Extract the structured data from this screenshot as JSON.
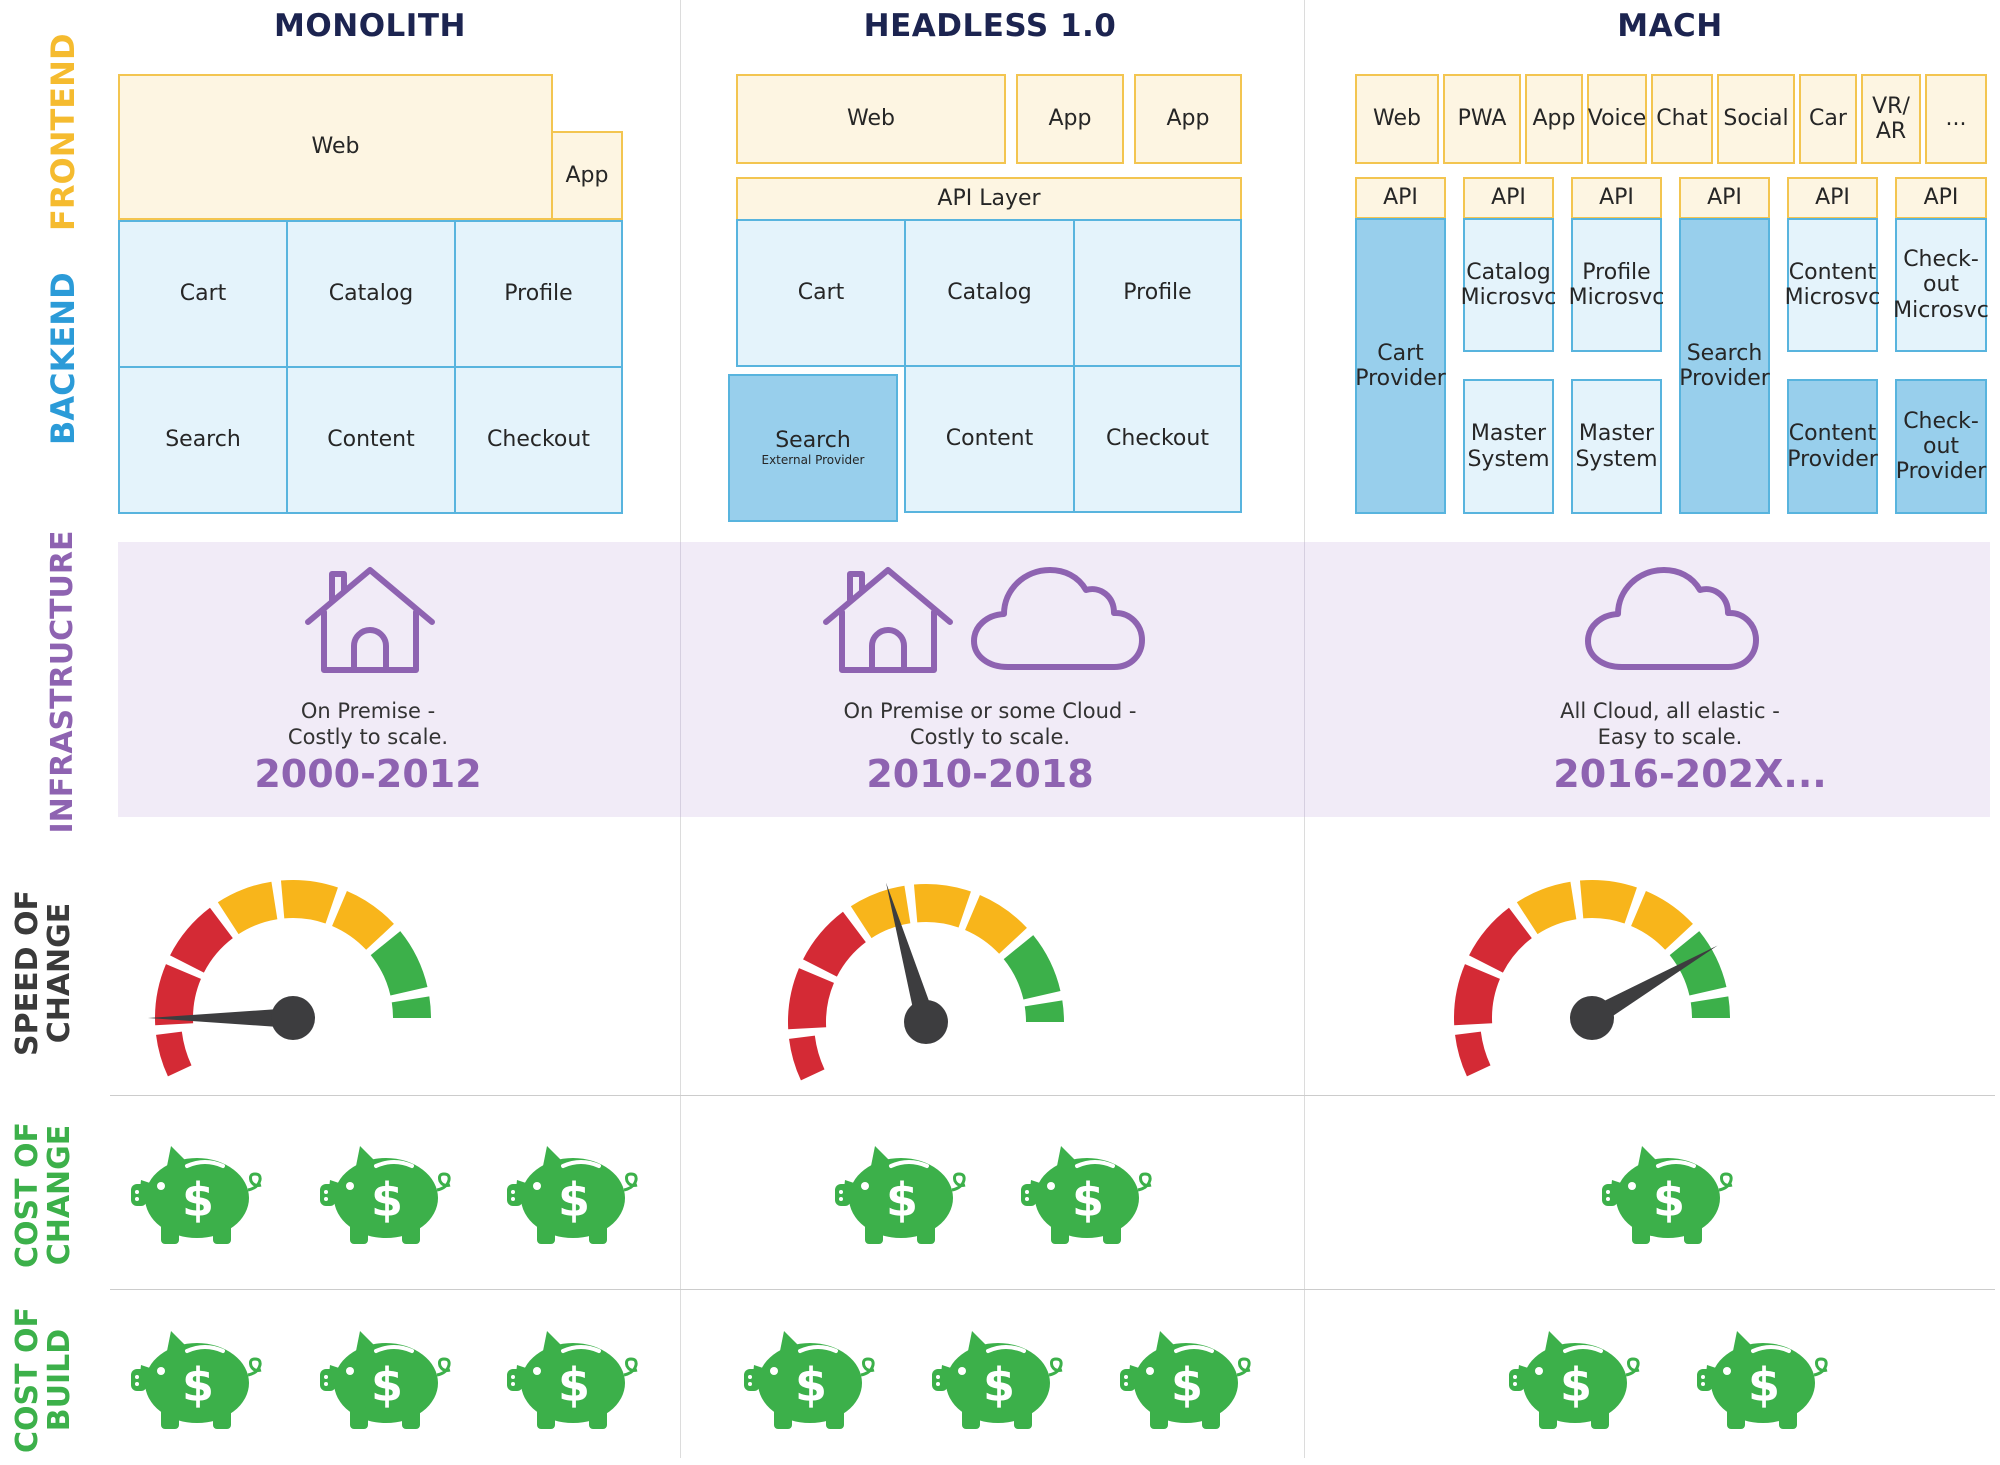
{
  "columns": [
    {
      "title": "MONOLITH"
    },
    {
      "title": "HEADLESS 1.0"
    },
    {
      "title": "MACH"
    }
  ],
  "row_labels": {
    "frontend": "FRONTEND",
    "backend": "BACKEND",
    "infrastructure": "INFRASTRUCTURE",
    "speed": "SPEED OF\nCHANGE",
    "cost_change": "COST OF\nCHANGE",
    "cost_build": "COST OF\nBUILD"
  },
  "colors": {
    "frontend": "#f5bb2f",
    "backend": "#2b9bd8",
    "infrastructure": "#8e63b1",
    "speed": "#3a3a3a",
    "cost": "#3cb04a",
    "title": "#1c2450"
  },
  "monolith": {
    "web": "Web",
    "app": "App",
    "services": [
      "Cart",
      "Catalog",
      "Profile",
      "Search",
      "Content",
      "Checkout"
    ]
  },
  "headless": {
    "web": "Web",
    "app1": "App",
    "app2": "App",
    "api_layer": "API Layer",
    "services": [
      "Cart",
      "Catalog",
      "Profile"
    ],
    "search": "Search",
    "search_sub": "External Provider",
    "services_bottom": [
      "Content",
      "Checkout"
    ]
  },
  "mach": {
    "channels": [
      "Web",
      "PWA",
      "App",
      "Voice",
      "Chat",
      "Social",
      "Car",
      "VR/\nAR",
      "..."
    ],
    "apis": [
      "API",
      "API",
      "API",
      "API",
      "API",
      "API"
    ],
    "cart": "Cart\nProvider",
    "catalog": "Catalog\nMicrosvc",
    "profile": "Profile\nMicrosvc",
    "search": "Search\nProvider",
    "content_ms": "Content\nMicrosvc",
    "checkout_ms": "Check-\nout\nMicrosvc",
    "master1": "Master\nSystem",
    "master2": "Master\nSystem",
    "content_provider": "Content\nProvider",
    "checkout_provider": "Check-\nout\nProvider"
  },
  "infrastructure": [
    {
      "caption": "On Premise -\nCostly to scale.",
      "period": "2000-2012",
      "icons": [
        "house-icon"
      ]
    },
    {
      "caption": "On Premise or some Cloud -\nCostly to scale.",
      "period": "2010-2018",
      "icons": [
        "house-icon",
        "cloud-icon"
      ]
    },
    {
      "caption": "All Cloud, all elastic -\nEasy to scale.",
      "period": "2016-202X...",
      "icons": [
        "cloud-icon"
      ]
    }
  ],
  "speed_of_change": [
    {
      "level": 0.1
    },
    {
      "level": 0.47
    },
    {
      "level": 0.85
    }
  ],
  "cost_of_change": [
    3,
    2,
    1
  ],
  "cost_of_build": [
    3,
    3,
    2
  ]
}
